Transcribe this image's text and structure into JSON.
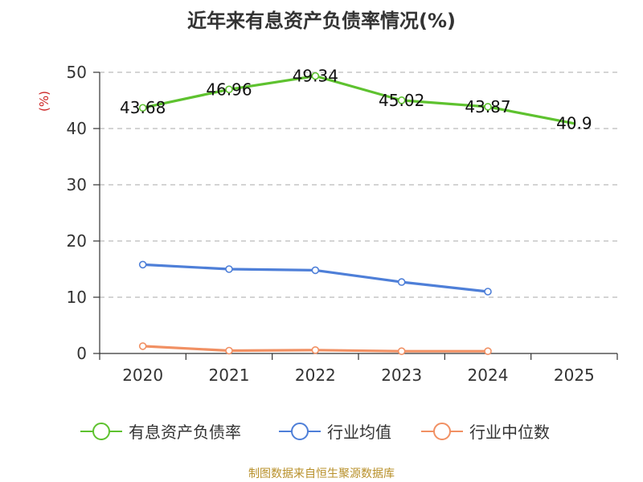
{
  "title": "近年来有息资产负债率情况(%)",
  "source": "制图数据来自恒生聚源数据库",
  "chart_data": {
    "type": "line",
    "title": "近年来有息资产负债率情况(%)",
    "ylabel": "(%)",
    "xlabel": "",
    "categories": [
      "2020",
      "2021",
      "2022",
      "2023",
      "2024",
      "2025"
    ],
    "ylim": [
      0,
      50
    ],
    "yticks": [
      0,
      10,
      20,
      30,
      40,
      50
    ],
    "grid": true,
    "legend_position": "bottom",
    "series": [
      {
        "name": "有息资产负债率",
        "color": "#5ec22f",
        "values": [
          43.68,
          46.96,
          49.34,
          45.02,
          43.87,
          40.9
        ],
        "labels": [
          "43.68",
          "46.96",
          "49.34",
          "45.02",
          "43.87",
          "40.9"
        ],
        "show_labels": true,
        "marker_last": false
      },
      {
        "name": "行业均值",
        "color": "#4e7fd8",
        "values": [
          15.8,
          15.0,
          14.8,
          12.7,
          11.0,
          null
        ],
        "show_labels": false,
        "marker_last": true
      },
      {
        "name": "行业中位数",
        "color": "#f19063",
        "values": [
          1.3,
          0.5,
          0.6,
          0.4,
          0.4,
          null
        ],
        "show_labels": false,
        "marker_last": true
      }
    ]
  }
}
